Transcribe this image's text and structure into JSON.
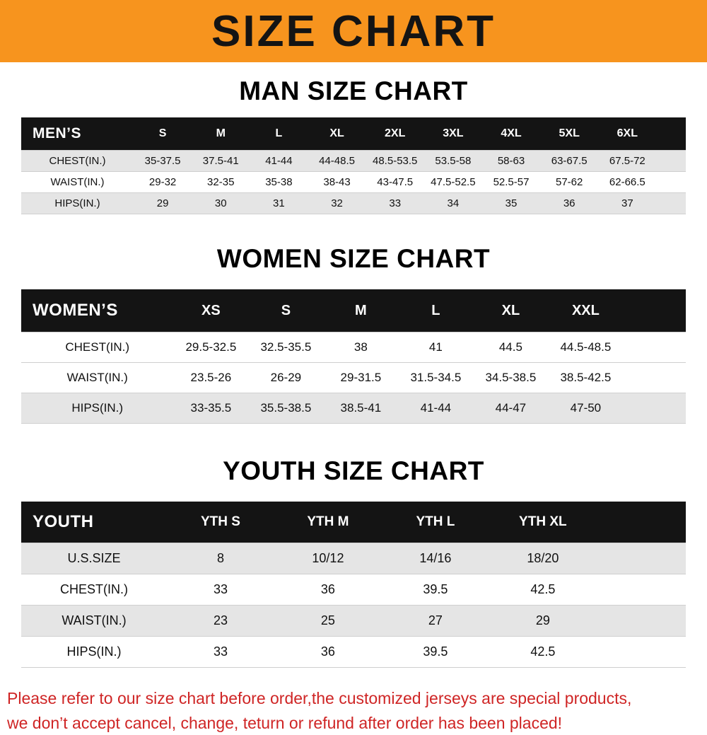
{
  "banner": {
    "title": "SIZE CHART"
  },
  "headings": {
    "men": "MAN SIZE CHART",
    "women": "WOMEN SIZE CHART",
    "youth": "YOUTH SIZE CHART"
  },
  "tables": {
    "men": {
      "label": "MEN’S",
      "columns": [
        "S",
        "M",
        "L",
        "XL",
        "2XL",
        "3XL",
        "4XL",
        "5XL",
        "6XL"
      ],
      "rows": [
        {
          "label": "CHEST(IN.)",
          "values": [
            "35-37.5",
            "37.5-41",
            "41-44",
            "44-48.5",
            "48.5-53.5",
            "53.5-58",
            "58-63",
            "63-67.5",
            "67.5-72"
          ]
        },
        {
          "label": "WAIST(IN.)",
          "values": [
            "29-32",
            "32-35",
            "35-38",
            "38-43",
            "43-47.5",
            "47.5-52.5",
            "52.5-57",
            "57-62",
            "62-66.5"
          ]
        },
        {
          "label": "HIPS(IN.)",
          "values": [
            "29",
            "30",
            "31",
            "32",
            "33",
            "34",
            "35",
            "36",
            "37"
          ]
        }
      ]
    },
    "women": {
      "label": "WOMEN’S",
      "columns": [
        "XS",
        "S",
        "M",
        "L",
        "XL",
        "XXL"
      ],
      "rows": [
        {
          "label": "CHEST(IN.)",
          "values": [
            "29.5-32.5",
            "32.5-35.5",
            "38",
            "41",
            "44.5",
            "44.5-48.5"
          ]
        },
        {
          "label": "WAIST(IN.)",
          "values": [
            "23.5-26",
            "26-29",
            "29-31.5",
            "31.5-34.5",
            "34.5-38.5",
            "38.5-42.5"
          ]
        },
        {
          "label": "HIPS(IN.)",
          "values": [
            "33-35.5",
            "35.5-38.5",
            "38.5-41",
            "41-44",
            "44-47",
            "47-50"
          ]
        }
      ]
    },
    "youth": {
      "label": "YOUTH",
      "columns": [
        "YTH S",
        "YTH M",
        "YTH L",
        "YTH XL"
      ],
      "rows": [
        {
          "label": "U.S.SIZE",
          "values": [
            "8",
            "10/12",
            "14/16",
            "18/20"
          ]
        },
        {
          "label": "CHEST(IN.)",
          "values": [
            "33",
            "36",
            "39.5",
            "42.5"
          ]
        },
        {
          "label": "WAIST(IN.)",
          "values": [
            "23",
            "25",
            "27",
            "29"
          ]
        },
        {
          "label": "HIPS(IN.)",
          "values": [
            "33",
            "36",
            "39.5",
            "42.5"
          ]
        }
      ]
    }
  },
  "footer": {
    "line1": "Please refer to our size chart before order,the customized jerseys are special products,",
    "line2": "we don’t accept cancel, change, teturn or refund after order has been placed!"
  },
  "colors": {
    "banner_bg": "#f7941e",
    "header_bg": "#141414",
    "stripe": "#e5e5e5",
    "footer_text": "#cf2525"
  }
}
